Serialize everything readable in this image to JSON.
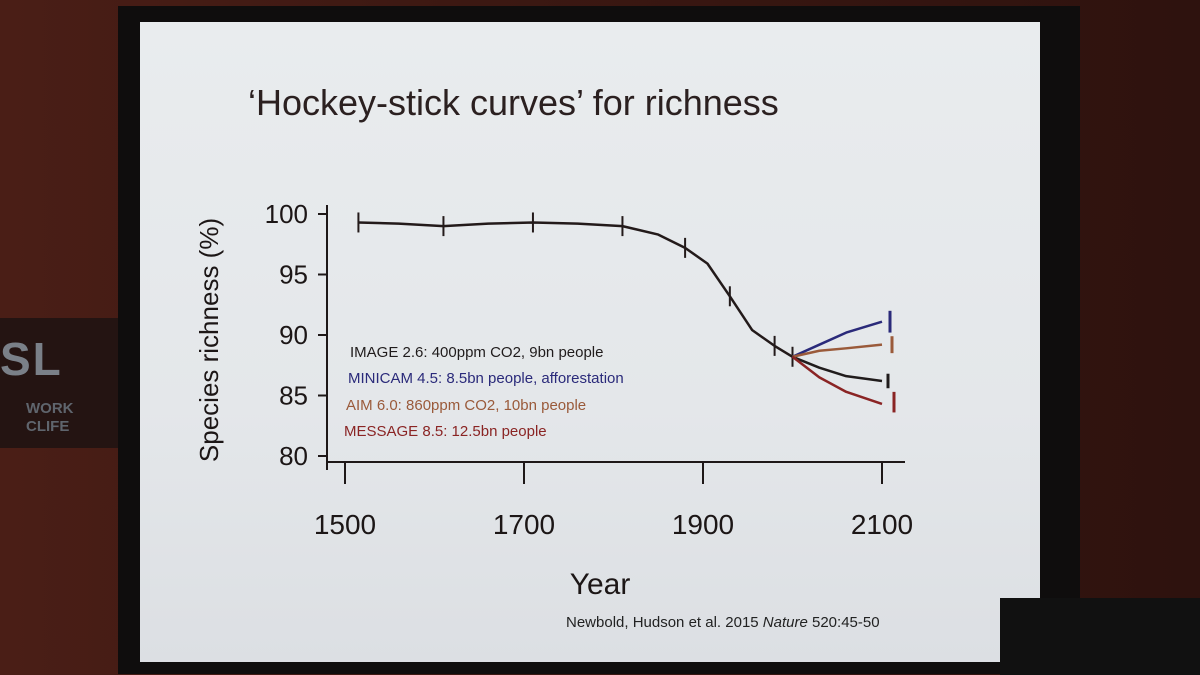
{
  "slide": {
    "title": "‘Hockey-stick curves’ for richness",
    "citation_authors": "Newbold, Hudson et al. 2015 ",
    "citation_journal": "Nature",
    "citation_ref": " 520:45-50"
  },
  "banner": {
    "big": "SL",
    "small1": "WORK",
    "small2": "CLIFE"
  },
  "colors": {
    "historical": "#231a1a",
    "IMAGE": "#201c1c",
    "MINICAM": "#2a2a7a",
    "AIM": "#9a5a3a",
    "MESSAGE": "#8a2424"
  },
  "chart_data": {
    "type": "line",
    "xlabel": "Year",
    "ylabel": "Species richness (%)",
    "xlim": [
      1500,
      2100
    ],
    "ylim": [
      80,
      100
    ],
    "xticks": [
      1500,
      1700,
      1900,
      2100
    ],
    "yticks": [
      80,
      85,
      90,
      95,
      100
    ],
    "historical": {
      "x": [
        1515,
        1560,
        1610,
        1660,
        1710,
        1760,
        1810,
        1850,
        1880,
        1905,
        1930,
        1955,
        1980,
        2000
      ],
      "y": [
        99.3,
        99.2,
        99.0,
        99.2,
        99.3,
        99.2,
        99.0,
        98.3,
        97.2,
        95.9,
        93.2,
        90.4,
        89.1,
        88.2
      ]
    },
    "series": [
      {
        "name": "IMAGE 2.6: 400ppm CO2, 9bn people",
        "x": [
          2000,
          2030,
          2060,
          2100
        ],
        "y": [
          88.2,
          87.3,
          86.6,
          86.2
        ],
        "range": [
          85.6,
          86.8
        ],
        "legend_color": "#201c1c"
      },
      {
        "name": "MINICAM 4.5: 8.5bn people, afforestation",
        "x": [
          2000,
          2030,
          2060,
          2100
        ],
        "y": [
          88.2,
          89.2,
          90.2,
          91.1
        ],
        "range": [
          90.2,
          92.0
        ],
        "legend_color": "#2a2a7a"
      },
      {
        "name": "AIM 6.0: 860ppm CO2, 10bn people",
        "x": [
          2000,
          2030,
          2060,
          2100
        ],
        "y": [
          88.2,
          88.7,
          88.9,
          89.2
        ],
        "range": [
          88.5,
          89.9
        ],
        "legend_color": "#9a5a3a"
      },
      {
        "name": "MESSAGE 8.5: 12.5bn people",
        "x": [
          2000,
          2030,
          2060,
          2100
        ],
        "y": [
          88.2,
          86.5,
          85.3,
          84.3
        ],
        "range": [
          83.6,
          85.3
        ],
        "legend_color": "#8a2424"
      }
    ]
  }
}
